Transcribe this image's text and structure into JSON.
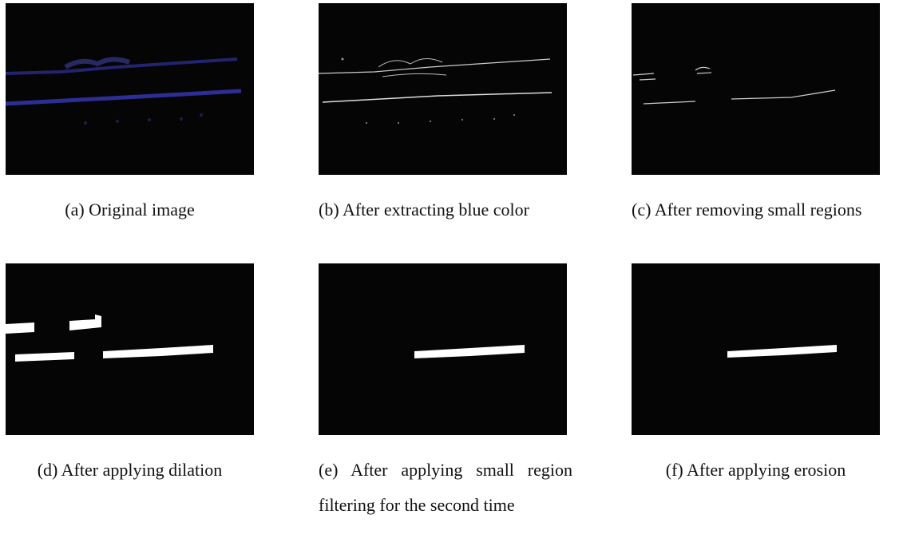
{
  "figure": {
    "subfigures": [
      {
        "label": "(a)",
        "caption": "Original image"
      },
      {
        "label": "(b)",
        "caption": "After extracting blue color"
      },
      {
        "label": "(c)",
        "caption": "After removing small regions"
      },
      {
        "label": "(d)",
        "caption": "After applying dilation"
      },
      {
        "label": "(e)",
        "caption": "After applying small region filtering for the second time"
      },
      {
        "label": "(f)",
        "caption": "After applying erosion"
      }
    ]
  }
}
